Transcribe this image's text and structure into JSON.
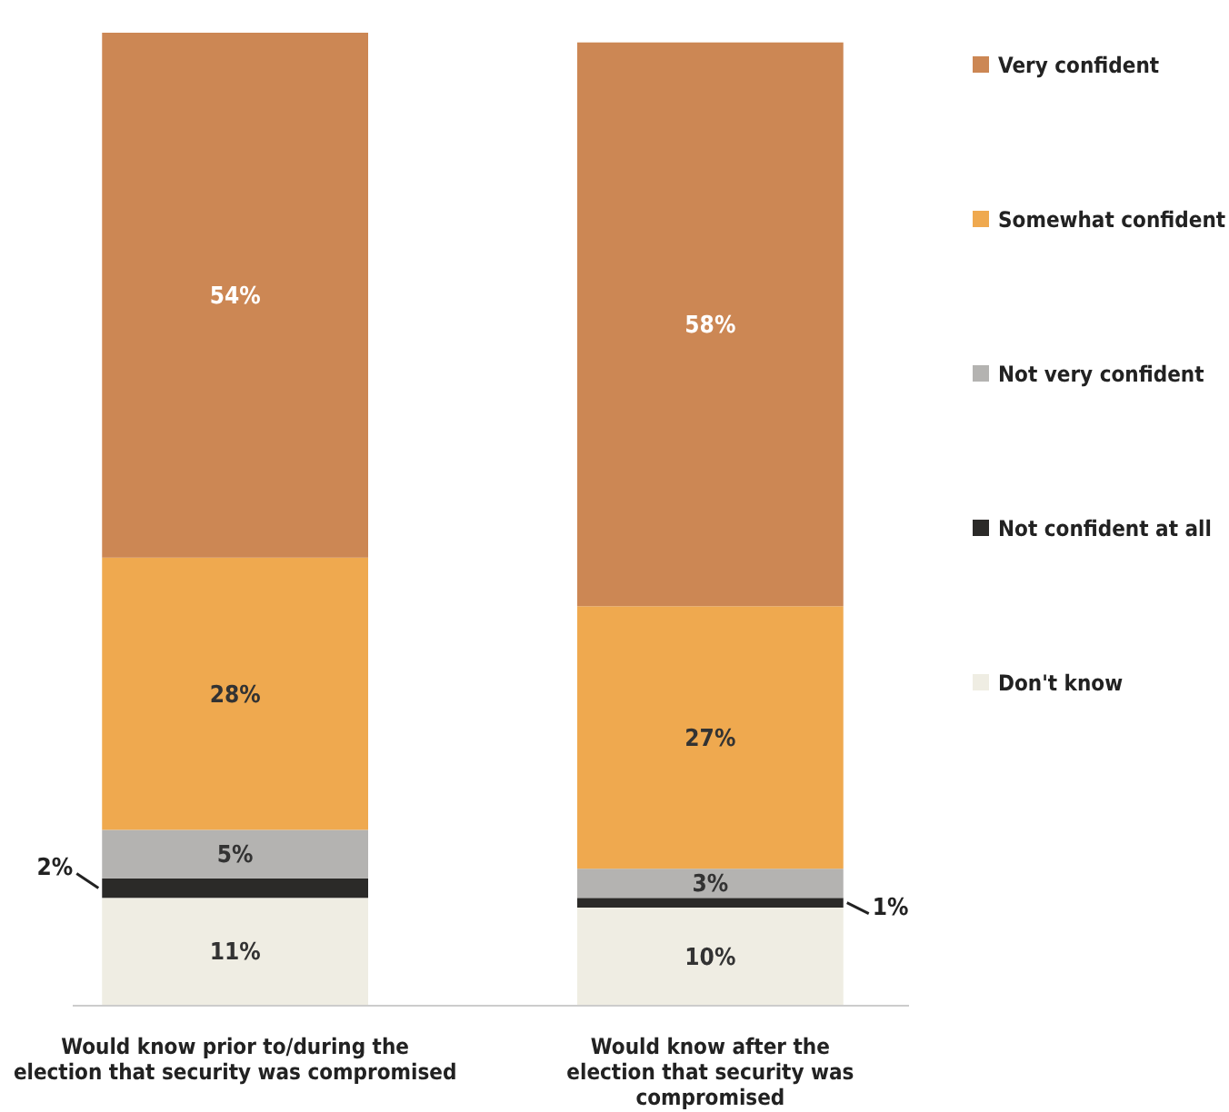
{
  "chart_data": {
    "type": "bar",
    "stacked": true,
    "legend": "right",
    "categories": [
      "Would know prior to/during the election that security was compromised",
      "Would know after the election that security was compromised"
    ],
    "series": [
      {
        "name": "Don't know",
        "color": "#efede3",
        "values": [
          11,
          10
        ],
        "value_labels": [
          "11%",
          "10%"
        ]
      },
      {
        "name": "Not confident at all",
        "color": "#2b2a28",
        "values": [
          2,
          1
        ],
        "value_labels": [
          "2%",
          "1%"
        ]
      },
      {
        "name": "Not very confident",
        "color": "#b4b3b1",
        "values": [
          5,
          3
        ],
        "value_labels": [
          "5%",
          "3%"
        ]
      },
      {
        "name": "Somewhat confident",
        "color": "#efa94f",
        "values": [
          28,
          27
        ],
        "value_labels": [
          "28%",
          "27%"
        ]
      },
      {
        "name": "Very confident",
        "color": "#cc8754",
        "values": [
          54,
          58
        ],
        "value_labels": [
          "54%",
          "58%"
        ]
      }
    ]
  }
}
